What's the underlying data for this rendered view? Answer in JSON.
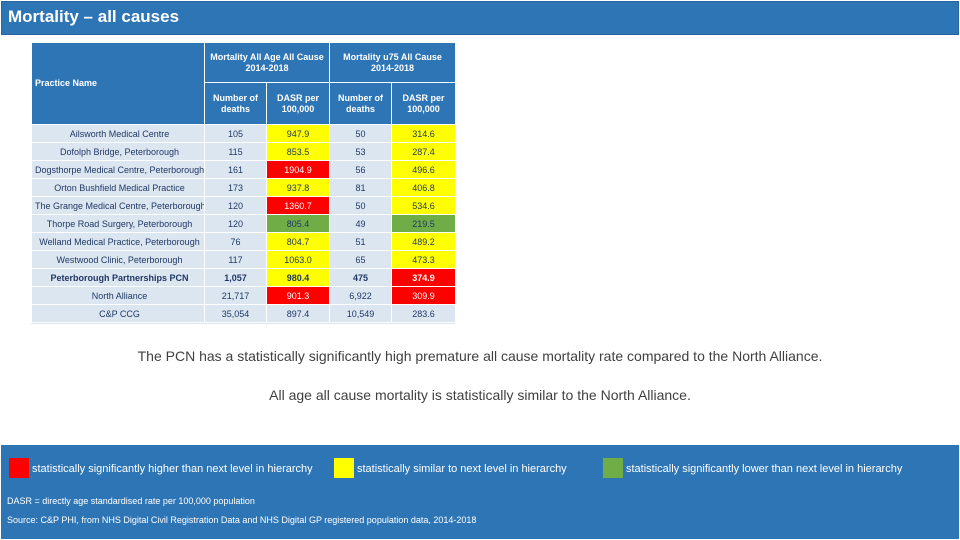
{
  "title": "Mortality – all causes",
  "table": {
    "practice_header": "Practice Name",
    "group1": [
      "Mortality All Age All Cause",
      "2014-2018"
    ],
    "group2": [
      "Mortality u75 All Cause",
      "2014-2018"
    ],
    "sub_deaths": [
      "Number of",
      "deaths"
    ],
    "sub_dasr": [
      "DASR per",
      "100,000"
    ],
    "rows": [
      {
        "name": "Ailsworth Medical Centre",
        "all_deaths": "105",
        "all_dasr": "947.9",
        "all_flag": "yellow",
        "u75_deaths": "50",
        "u75_dasr": "314.6",
        "u75_flag": "yellow"
      },
      {
        "name": "Dofolph Bridge, Peterborough",
        "all_deaths": "115",
        "all_dasr": "853.5",
        "all_flag": "yellow",
        "u75_deaths": "53",
        "u75_dasr": "287.4",
        "u75_flag": "yellow"
      },
      {
        "name": "Dogsthorpe Medical Centre, Peterborough",
        "all_deaths": "161",
        "all_dasr": "1904.9",
        "all_flag": "red",
        "u75_deaths": "56",
        "u75_dasr": "496.6",
        "u75_flag": "yellow"
      },
      {
        "name": "Orton Bushfield Medical Practice",
        "all_deaths": "173",
        "all_dasr": "937.8",
        "all_flag": "yellow",
        "u75_deaths": "81",
        "u75_dasr": "406.8",
        "u75_flag": "yellow"
      },
      {
        "name": "The Grange Medical Centre, Peterborough",
        "all_deaths": "120",
        "all_dasr": "1360.7",
        "all_flag": "red",
        "u75_deaths": "50",
        "u75_dasr": "534.6",
        "u75_flag": "yellow"
      },
      {
        "name": "Thorpe Road Surgery, Peterborough",
        "all_deaths": "120",
        "all_dasr": "805.4",
        "all_flag": "green",
        "u75_deaths": "49",
        "u75_dasr": "219.5",
        "u75_flag": "green"
      },
      {
        "name": "Welland Medical Practice, Peterborough",
        "all_deaths": "76",
        "all_dasr": "804.7",
        "all_flag": "yellow",
        "u75_deaths": "51",
        "u75_dasr": "489.2",
        "u75_flag": "yellow"
      },
      {
        "name": "Westwood Clinic, Peterborough",
        "all_deaths": "117",
        "all_dasr": "1063.0",
        "all_flag": "yellow",
        "u75_deaths": "65",
        "u75_dasr": "473.3",
        "u75_flag": "yellow"
      },
      {
        "name": "Peterborough Partnerships PCN",
        "all_deaths": "1,057",
        "all_dasr": "980.4",
        "all_flag": "yellow",
        "u75_deaths": "475",
        "u75_dasr": "374.9",
        "u75_flag": "red",
        "bold": true
      },
      {
        "name": "North Alliance",
        "all_deaths": "21,717",
        "all_dasr": "901.3",
        "all_flag": "red",
        "u75_deaths": "6,922",
        "u75_dasr": "309.9",
        "u75_flag": "red"
      },
      {
        "name": "C&P CCG",
        "all_deaths": "35,054",
        "all_dasr": "897.4",
        "all_flag": "",
        "u75_deaths": "10,549",
        "u75_dasr": "283.6",
        "u75_flag": ""
      }
    ]
  },
  "notes": [
    "The PCN has a statistically significantly high premature all cause mortality rate compared to the North Alliance.",
    "All age all cause mortality is statistically similar to the North Alliance."
  ],
  "legend": [
    {
      "label": "statistically significantly higher than next level in hierarchy",
      "color": "#ff0000"
    },
    {
      "label": "statistically similar to next level in hierarchy",
      "color": "#ffff00"
    },
    {
      "label": "statistically significantly lower than next level in hierarchy",
      "color": "#70ad47"
    }
  ],
  "footnotes": [
    "DASR = directly age standardised rate per 100,000 population",
    "Source: C&P PHI, from NHS Digital Civil Registration Data and NHS Digital GP registered population data, 2014-2018"
  ]
}
